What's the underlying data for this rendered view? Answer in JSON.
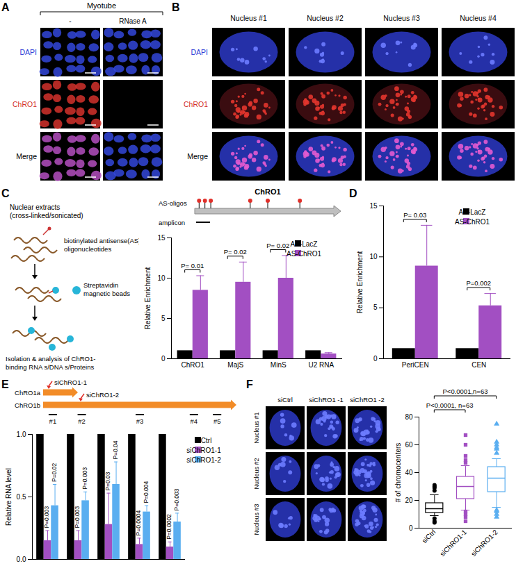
{
  "panels": {
    "A": {
      "label": "A",
      "header": "Myotube",
      "columns": [
        "-",
        "RNase A"
      ],
      "rows": [
        "DAPI",
        "ChRO1",
        "Merge"
      ]
    },
    "B": {
      "label": "B",
      "columns": [
        "Nucleus #1",
        "Nucleus #2",
        "Nucleus #3",
        "Nucleus #4"
      ],
      "rows": [
        "DAPI",
        "ChRO1",
        "Merge"
      ]
    },
    "C": {
      "label": "C",
      "steps": [
        [
          "Nuclear extracts",
          "(cross-linked/sonicated)"
        ],
        [
          "biotinylated antisense(AS)",
          "oligonucleotides"
        ],
        [
          "Streptavidin",
          "magnetic beads"
        ],
        [
          "Isolation & analysis of ChRO1-",
          "binding RNA s/DNA s/Proteins"
        ]
      ],
      "gene": "ChRO1",
      "oligos": "AS-oligos",
      "amplicon": "amplicon"
    },
    "D": {
      "label": "D"
    },
    "E": {
      "label": "E",
      "transcripts": [
        "ChRO1a",
        "ChRO1b"
      ],
      "sirnas": [
        "siChRO1-1",
        "siChRO1-2"
      ],
      "amplicons": [
        "#1",
        "#2",
        "#3",
        "#4",
        "#5"
      ]
    },
    "F": {
      "label": "F",
      "columns": [
        "siCtrl",
        "siChRO1 -1",
        "siChRO1 -2"
      ],
      "rows": [
        "Nucleus #1",
        "Nucleus #2",
        "Nucleus #3"
      ]
    }
  },
  "chart_data": [
    {
      "type": "bar",
      "ylabel": "Relative Enrichment",
      "categories": [
        "ChRO1",
        "MajS",
        "MinS",
        "U2 RNA"
      ],
      "series": [
        {
          "name": "AS-LacZ",
          "color": "#000000",
          "values": [
            1,
            1,
            1,
            1
          ]
        },
        {
          "name": "AS-ChRO1",
          "color": "#a24fc2",
          "values": [
            8.5,
            9.5,
            10,
            0.6
          ],
          "errors": [
            1.8,
            2.5,
            2.8,
            0.15
          ]
        }
      ],
      "ylim": [
        0,
        15
      ],
      "yticks": [
        0,
        5,
        10,
        15
      ],
      "legend": "top-right",
      "annotations": [
        {
          "category": "ChRO1",
          "text": "P= 0.01"
        },
        {
          "category": "MajS",
          "text": "P= 0.02"
        },
        {
          "category": "MinS",
          "text": "P= 0.02"
        }
      ]
    },
    {
      "type": "bar",
      "ylabel": "Relative Enrichment",
      "categories": [
        "PeriCEN",
        "CEN"
      ],
      "series": [
        {
          "name": "AS-LacZ",
          "color": "#000000",
          "values": [
            1,
            1
          ]
        },
        {
          "name": "AS-ChRO1",
          "color": "#a24fc2",
          "values": [
            9.1,
            5.2
          ],
          "errors": [
            4.0,
            1.2
          ]
        }
      ],
      "ylim": [
        0,
        15
      ],
      "yticks": [
        0,
        5,
        10,
        15
      ],
      "legend": "top-right",
      "annotations": [
        {
          "category": "PeriCEN",
          "text": "P= 0.03"
        },
        {
          "category": "CEN",
          "text": "P=0.002"
        }
      ]
    },
    {
      "type": "bar",
      "ylabel": "Relative RNA level",
      "categories": [
        "#1",
        "#2",
        "#3",
        "#4",
        "#5"
      ],
      "series": [
        {
          "name": "siCtrl",
          "color": "#000000",
          "values": [
            1,
            1,
            1,
            1,
            1
          ]
        },
        {
          "name": "siChRO1-1",
          "color": "#a24fc2",
          "values": [
            0.15,
            0.15,
            0.28,
            0.12,
            0.1
          ],
          "errors": [
            0.08,
            0.08,
            0.25,
            0.05,
            0.04
          ]
        },
        {
          "name": "siChRO1-2",
          "color": "#5aaef0",
          "values": [
            0.43,
            0.47,
            0.6,
            0.38,
            0.3
          ],
          "errors": [
            0.17,
            0.07,
            0.18,
            0.05,
            0.07
          ]
        }
      ],
      "ylim": [
        0,
        1.0
      ],
      "yticks": [
        {
          "value": 0,
          "label": "0.0"
        },
        {
          "value": 0.5,
          "label": "0.5"
        },
        {
          "value": 1.0,
          "label": "1.0"
        }
      ],
      "legend": "top-right",
      "tick_labels": "y",
      "annotations": [
        {
          "category": "#1",
          "series": "siChRO1-1",
          "text": "P=0.003"
        },
        {
          "category": "#1",
          "series": "siChRO1-2",
          "text": "P=0.02"
        },
        {
          "category": "#2",
          "series": "siChRO1-1",
          "text": "P=0.003"
        },
        {
          "category": "#2",
          "series": "siChRO1-2",
          "text": "P=0.003"
        },
        {
          "category": "#3",
          "series": "siChRO1-1",
          "text": "P=0.03"
        },
        {
          "category": "#3",
          "series": "siChRO1-2",
          "text": "P=0.04"
        },
        {
          "category": "#4",
          "series": "siChRO1-1",
          "text": "P=0.0004"
        },
        {
          "category": "#4",
          "series": "siChRO1-2",
          "text": "P=0.004"
        },
        {
          "category": "#5",
          "series": "siChRO1-1",
          "text": "P=0.0002"
        },
        {
          "category": "#5",
          "series": "siChRO1-2",
          "text": "P=0.003"
        }
      ]
    },
    {
      "type": "box",
      "ylabel": "# of chromocenters",
      "categories": [
        "siCtrl",
        "siChRO1-1",
        "siChRO1-2"
      ],
      "boxes": [
        {
          "color": "#000000",
          "marker": "circle",
          "whisker_low": 9,
          "q1": 11,
          "median": 14,
          "q3": 18,
          "whisker_high": 24,
          "outliers": [
            4,
            5,
            7,
            27,
            29,
            30,
            31
          ]
        },
        {
          "color": "#a24fc2",
          "marker": "square",
          "whisker_low": 13,
          "q1": 21,
          "median": 30,
          "q3": 37,
          "whisker_high": 45,
          "outliers": [
            5,
            8,
            10,
            12,
            47,
            49,
            52,
            60,
            67
          ]
        },
        {
          "color": "#5aaef0",
          "marker": "triangle",
          "whisker_low": 15,
          "q1": 26,
          "median": 36,
          "q3": 44,
          "whisker_high": 50,
          "outliers": [
            8,
            10,
            12,
            13,
            54,
            57,
            58,
            60,
            62,
            75
          ]
        }
      ],
      "ylim": [
        0,
        80
      ],
      "yticks": [
        0,
        20,
        40,
        60,
        80
      ],
      "annotations": [
        {
          "from": "siCtrl",
          "to": "siChRO1-1",
          "text": "P<0.0001, n=63"
        },
        {
          "from": "siCtrl",
          "to": "siChRO1-2",
          "text": "P<0.0001,n=63"
        }
      ]
    }
  ]
}
